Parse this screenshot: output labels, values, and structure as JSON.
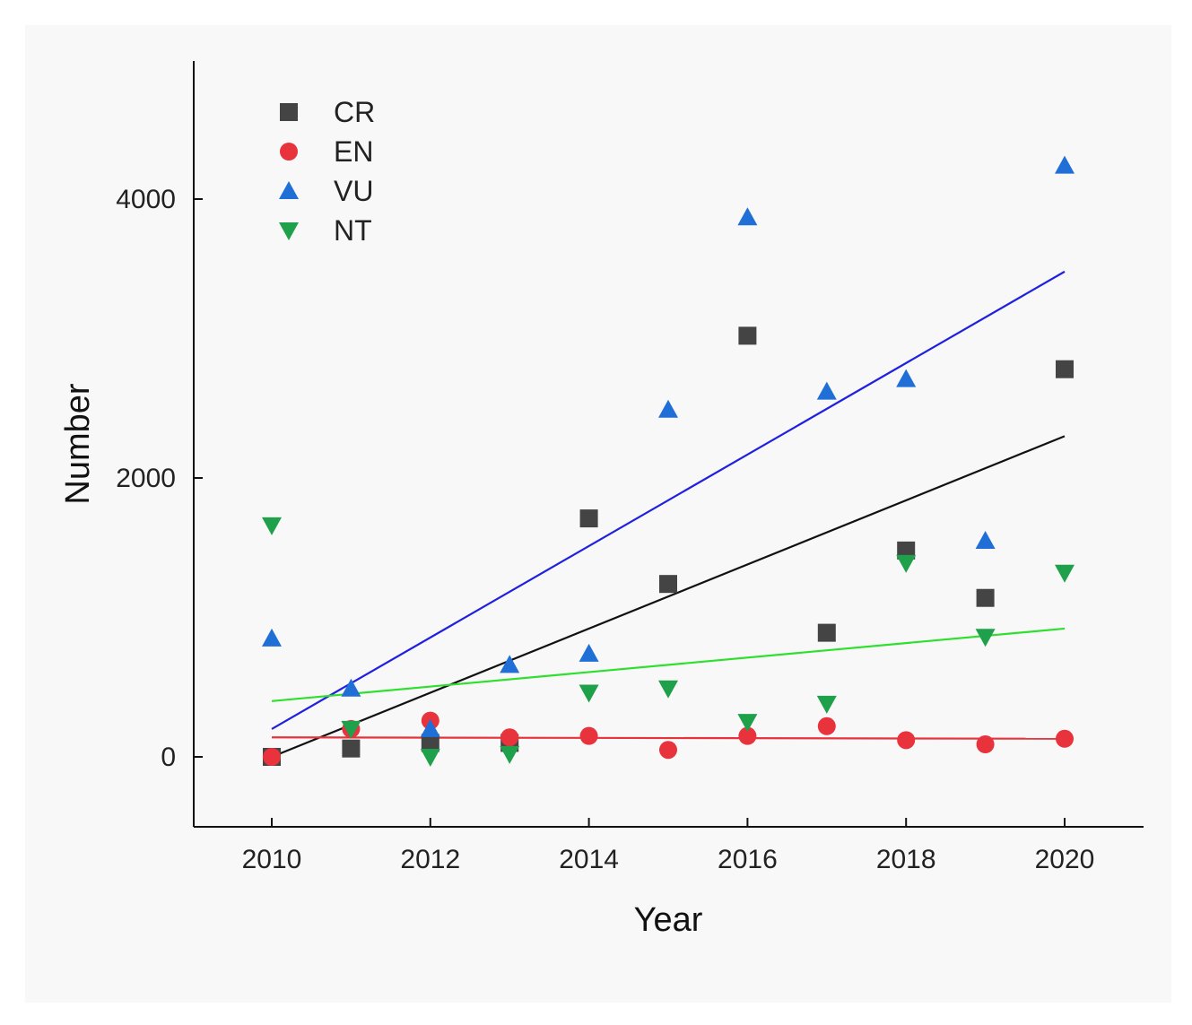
{
  "chart_data": {
    "type": "scatter",
    "title": "",
    "xlabel": "Year",
    "ylabel": "Number",
    "xlim": [
      2009,
      2021
    ],
    "ylim": [
      -500,
      5000
    ],
    "x_ticks": [
      2010,
      2012,
      2014,
      2016,
      2018,
      2020
    ],
    "y_ticks": [
      0,
      2000,
      4000
    ],
    "legend_position": "top-left",
    "x": [
      2010,
      2011,
      2012,
      2013,
      2014,
      2015,
      2016,
      2017,
      2018,
      2019,
      2020
    ],
    "series": [
      {
        "name": "CR",
        "marker": "square",
        "color": "#444444",
        "fit_color": "#111111",
        "values": [
          0,
          60,
          100,
          100,
          1710,
          1240,
          3020,
          890,
          1480,
          1140,
          2780
        ],
        "fit": [
          0,
          2300
        ]
      },
      {
        "name": "EN",
        "marker": "circle",
        "color": "#e8323c",
        "fit_color": "#e8323c",
        "values": [
          0,
          200,
          260,
          140,
          150,
          50,
          150,
          220,
          120,
          90,
          130
        ],
        "fit": [
          140,
          130
        ]
      },
      {
        "name": "VU",
        "marker": "triangle-up",
        "color": "#1f6fd6",
        "fit_color": "#2020e0",
        "values": [
          850,
          490,
          200,
          660,
          740,
          2490,
          3870,
          2620,
          2710,
          1550,
          4240
        ],
        "fit": [
          200,
          3480
        ]
      },
      {
        "name": "NT",
        "marker": "triangle-down",
        "color": "#1fa04a",
        "fit_color": "#2ee02e",
        "values": [
          1660,
          200,
          0,
          20,
          460,
          490,
          250,
          380,
          1390,
          860,
          1320
        ],
        "fit": [
          400,
          920
        ]
      }
    ]
  }
}
